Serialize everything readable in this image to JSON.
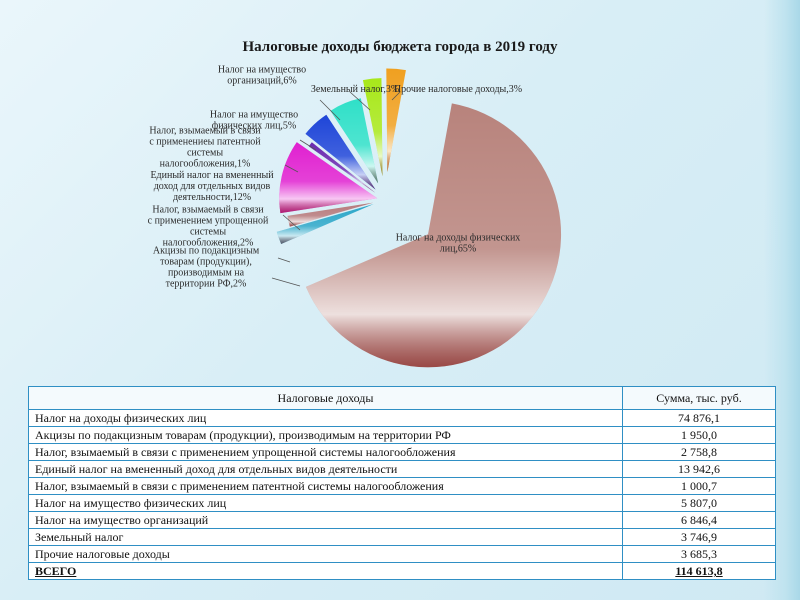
{
  "chart_data": {
    "type": "pie",
    "title": "Налоговые доходы бюджета города в 2019 году",
    "slices": [
      {
        "label": "Налог на доходы физических лиц,65%",
        "value": 65,
        "color": "#b8837c"
      },
      {
        "label": "Акцизы по подакцизным товарам (продукции), производимым на территории РФ,2%",
        "value": 2,
        "color": "#2aa6c8"
      },
      {
        "label": "Налог, взымаемый в связи с применением упрощенной системы налогообложения,2%",
        "value": 2,
        "color": "#b5787a"
      },
      {
        "label": "Единый налог на вмененный доход для отдельных видов деятельности,12%",
        "value": 12,
        "color": "#e020d0"
      },
      {
        "label": "Налог, взымаемый в связи с применениеы патентной системы налогообложения,1%",
        "value": 1,
        "color": "#6a2ab0"
      },
      {
        "label": "Налог на имущество физических лиц,5%",
        "value": 5,
        "color": "#1e45d8"
      },
      {
        "label": "Налог на имущество организаций,6%",
        "value": 6,
        "color": "#2fe0c8"
      },
      {
        "label": "Земельный налог,3%",
        "value": 3,
        "color": "#a8e81a"
      },
      {
        "label": "Прочие налоговые доходы,3%",
        "value": 3,
        "color": "#f0a020"
      }
    ],
    "legend": "none"
  },
  "table": {
    "headers": [
      "Налоговые доходы",
      "Сумма, тыс. руб."
    ],
    "rows": [
      [
        "Налог на доходы физических лиц",
        "74 876,1"
      ],
      [
        "Акцизы по подакцизным товарам (продукции), производимым на территории РФ",
        "1 950,0"
      ],
      [
        "Налог, взымаемый в связи с применением упрощенной системы налогообложения",
        "2 758,8"
      ],
      [
        "Единый налог на вмененный доход для отдельных видов деятельности",
        "13 942,6"
      ],
      [
        "Налог, взымаемый в связи с применением патентной системы налогообложения",
        "1 000,7"
      ],
      [
        "Налог на имущество физических лиц",
        "5 807,0"
      ],
      [
        "Налог на имущество организаций",
        "6 846,4"
      ],
      [
        "Земельный налог",
        "3 746,9"
      ],
      [
        "Прочие налоговые доходы",
        "3 685,3"
      ]
    ],
    "total": [
      "ВСЕГО",
      "114 613,8"
    ]
  }
}
